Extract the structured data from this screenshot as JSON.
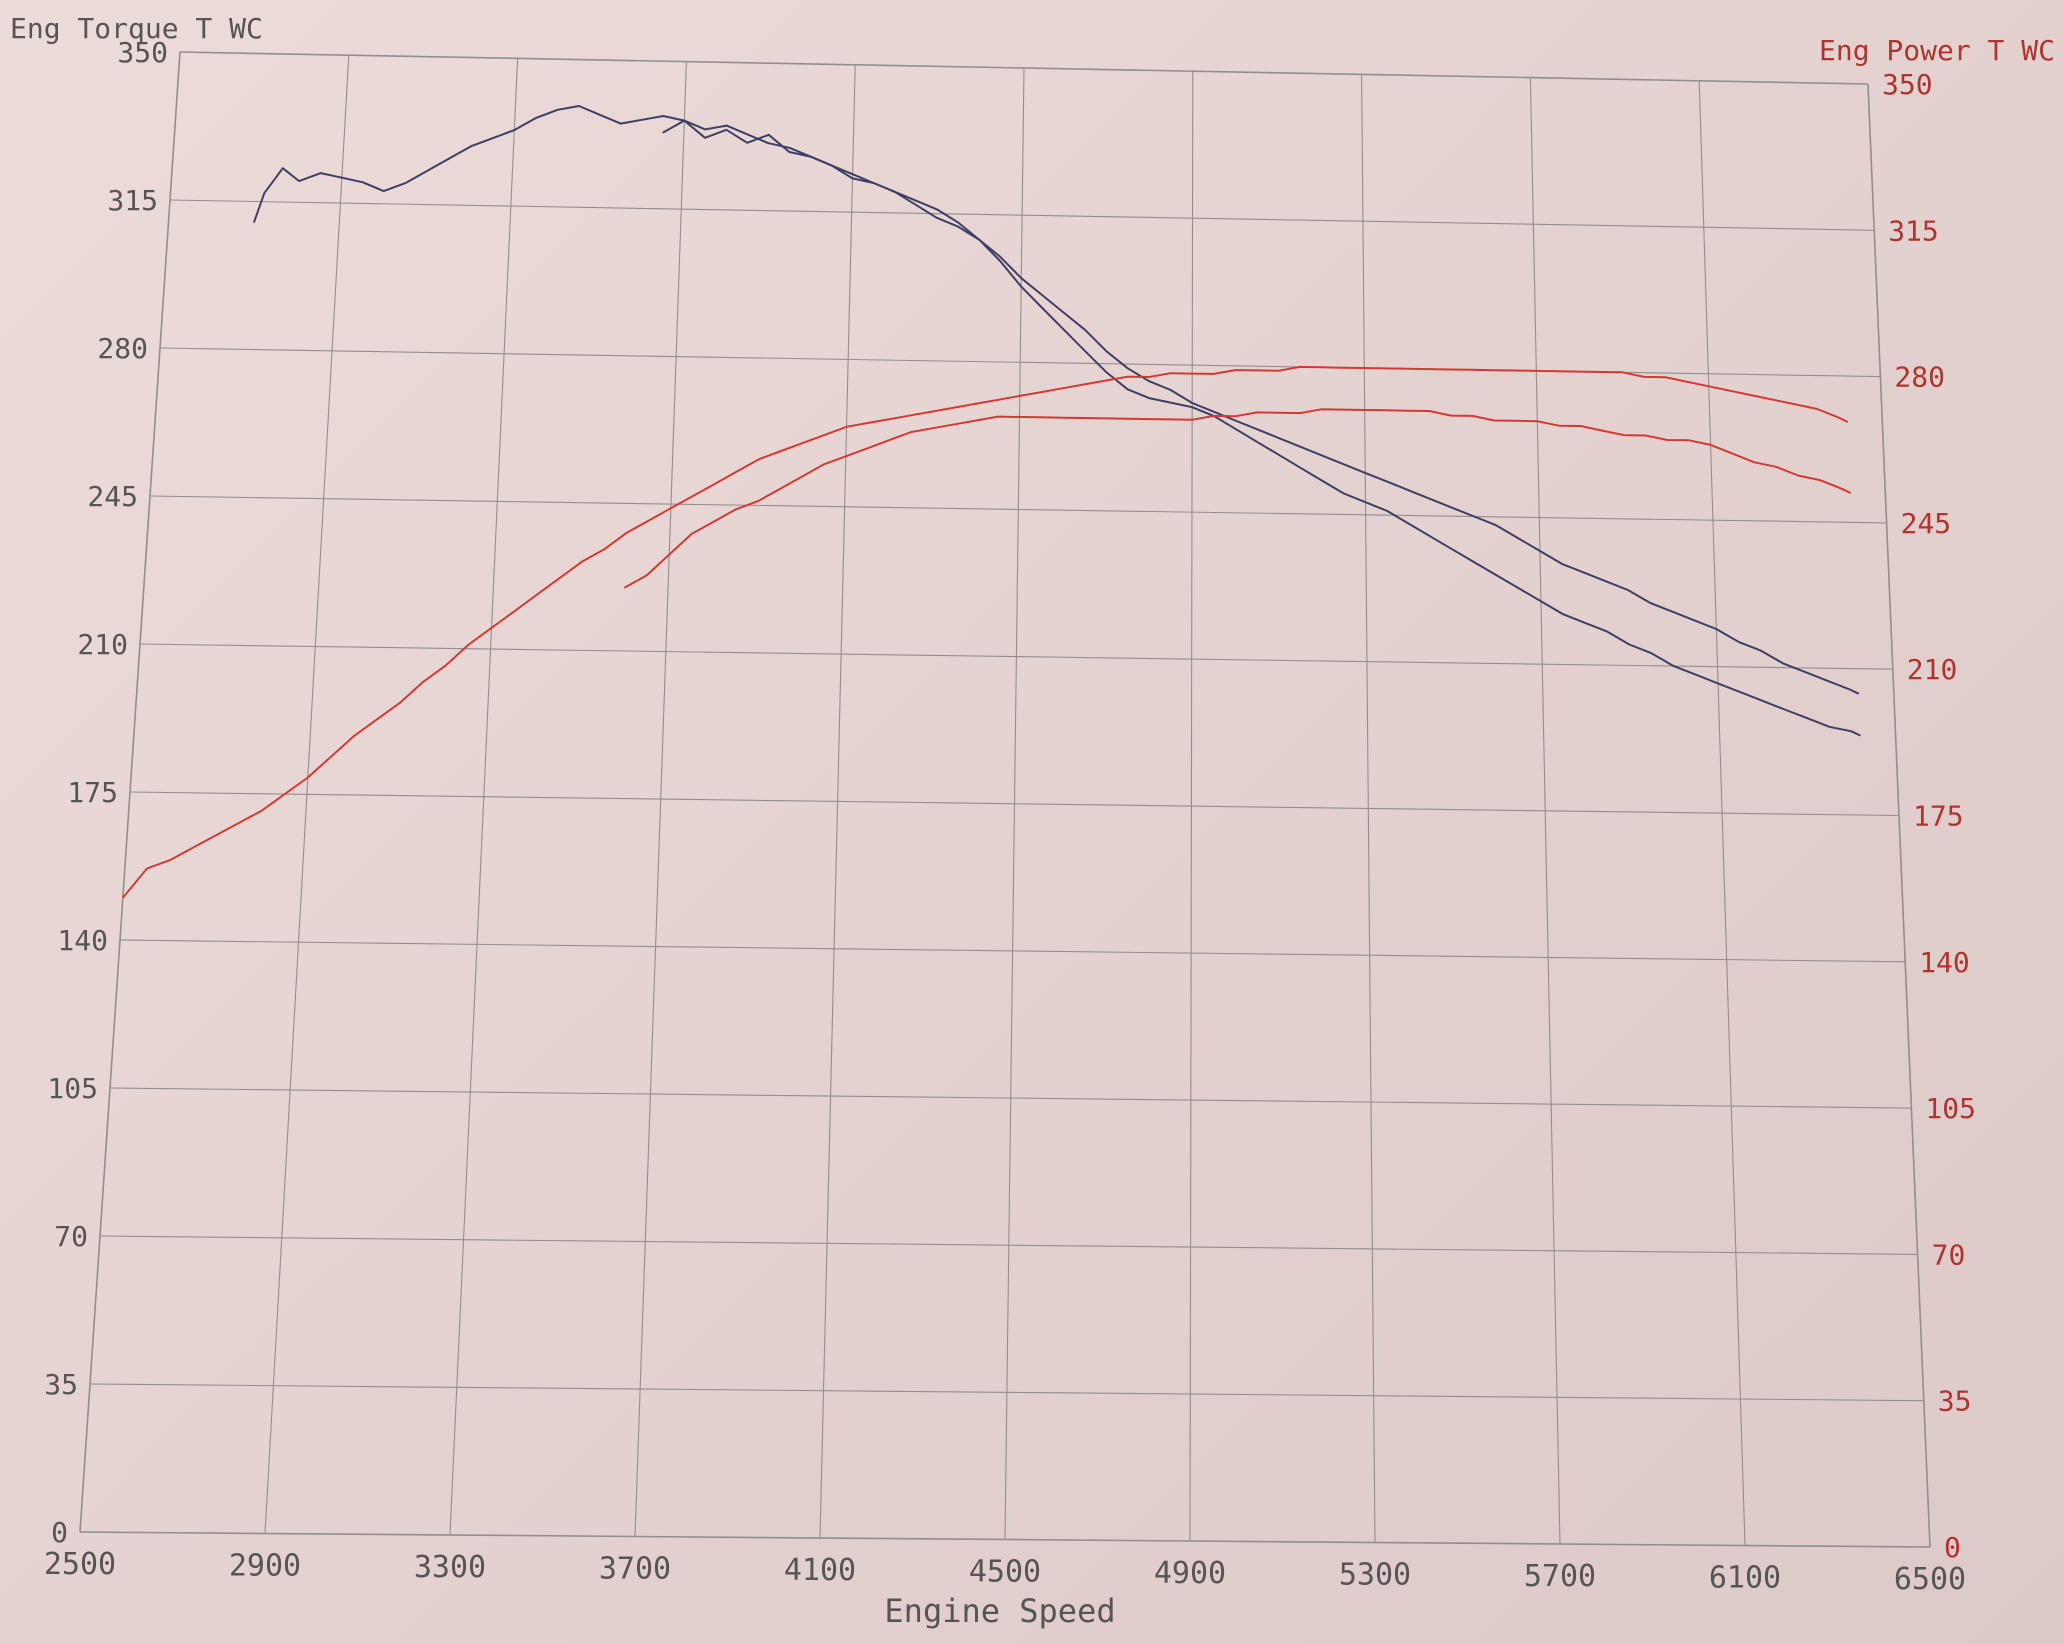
{
  "chart_data": {
    "type": "line",
    "title": "",
    "xlabel": "Engine Speed",
    "ylabel_left": "Eng Torque T WC",
    "ylabel_right": "Eng Power T WC",
    "xlim": [
      2500,
      6500
    ],
    "ylim_left": [
      0,
      350
    ],
    "ylim_right": [
      0,
      350
    ],
    "x_ticks": [
      "2500",
      "2900",
      "3300",
      "3700",
      "4100",
      "4500",
      "4900",
      "5300",
      "5700",
      "6100",
      "6500"
    ],
    "y_ticks_left": [
      "0",
      "35",
      "70",
      "105",
      "140",
      "175",
      "210",
      "245",
      "280",
      "315",
      "350"
    ],
    "y_ticks_right": [
      "0",
      "35",
      "70",
      "105",
      "140",
      "175",
      "210",
      "245",
      "280",
      "315",
      "350"
    ],
    "grid": true,
    "colors": {
      "torque": "#3f3f66",
      "power": "#d23a33",
      "grid": "#8f8f8f",
      "right_axis_text": "#b0342e"
    },
    "series": [
      {
        "axis": "left",
        "color": "torque",
        "x": [
          2700,
          2720,
          2760,
          2800,
          2850,
          2900,
          2950,
          3000,
          3050,
          3100,
          3150,
          3200,
          3250,
          3300,
          3350,
          3400,
          3450,
          3500,
          3550,
          3600,
          3650,
          3700,
          3750,
          3800,
          3850,
          3900,
          3950,
          4000,
          4050,
          4100,
          4150,
          4200,
          4250,
          4300,
          4350,
          4400,
          4450,
          4500,
          4550,
          4600,
          4650,
          4700,
          4750,
          4800,
          4850,
          4900,
          4950,
          5000,
          5050,
          5100,
          5150,
          5200,
          5250,
          5300,
          5350,
          5400,
          5450,
          5500,
          5550,
          5600,
          5650,
          5700,
          5750,
          5800,
          5850,
          5900,
          5950,
          6000,
          6050,
          6100,
          6150,
          6200,
          6250,
          6300,
          6350,
          6400,
          6420
        ],
        "y": [
          310,
          317,
          323,
          320,
          322,
          321,
          320,
          318,
          320,
          323,
          326,
          329,
          331,
          333,
          336,
          338,
          339,
          337,
          335,
          336,
          337,
          336,
          334,
          335,
          333,
          331,
          330,
          328,
          326,
          324,
          322,
          320,
          317,
          314,
          312,
          309,
          305,
          300,
          296,
          292,
          288,
          283,
          279,
          276,
          274,
          271,
          269,
          267,
          265,
          263,
          261,
          259,
          257,
          255,
          253,
          251,
          249,
          247,
          245,
          243,
          240,
          237,
          234,
          232,
          230,
          228,
          225,
          223,
          221,
          219,
          216,
          214,
          211,
          209,
          207,
          205,
          204
        ]
      },
      {
        "axis": "left",
        "color": "torque",
        "x": [
          3650,
          3700,
          3750,
          3800,
          3850,
          3900,
          3950,
          4000,
          4050,
          4100,
          4150,
          4200,
          4250,
          4300,
          4350,
          4400,
          4450,
          4500,
          4550,
          4600,
          4650,
          4700,
          4750,
          4800,
          4850,
          4900,
          4950,
          5000,
          5050,
          5100,
          5150,
          5200,
          5250,
          5300,
          5350,
          5400,
          5450,
          5500,
          5550,
          5600,
          5650,
          5700,
          5750,
          5800,
          5850,
          5900,
          5950,
          6000,
          6050,
          6100,
          6150,
          6200,
          6250,
          6300,
          6350,
          6400,
          6420
        ],
        "y": [
          333,
          336,
          332,
          334,
          331,
          333,
          329,
          328,
          326,
          323,
          322,
          320,
          318,
          316,
          313,
          309,
          304,
          298,
          293,
          288,
          283,
          278,
          274,
          272,
          271,
          270,
          268,
          265,
          262,
          259,
          256,
          253,
          250,
          248,
          246,
          243,
          240,
          237,
          234,
          231,
          228,
          225,
          222,
          220,
          218,
          215,
          213,
          210,
          208,
          206,
          204,
          202,
          200,
          198,
          196,
          195,
          194
        ]
      },
      {
        "axis": "right",
        "color": "power",
        "x": [
          2500,
          2550,
          2600,
          2650,
          2700,
          2750,
          2800,
          2850,
          2900,
          2950,
          3000,
          3050,
          3100,
          3150,
          3200,
          3250,
          3300,
          3350,
          3400,
          3450,
          3500,
          3550,
          3600,
          3650,
          3700,
          3750,
          3800,
          3850,
          3900,
          3950,
          4000,
          4050,
          4100,
          4150,
          4200,
          4250,
          4300,
          4350,
          4400,
          4450,
          4500,
          4550,
          4600,
          4650,
          4700,
          4750,
          4800,
          4850,
          4900,
          4950,
          5000,
          5050,
          5100,
          5150,
          5200,
          5250,
          5300,
          5350,
          5400,
          5450,
          5500,
          5550,
          5600,
          5650,
          5700,
          5750,
          5800,
          5850,
          5900,
          5950,
          6000,
          6050,
          6100,
          6150,
          6200,
          6250,
          6300,
          6350,
          6400,
          6420
        ],
        "y": [
          150,
          157,
          159,
          162,
          165,
          168,
          171,
          175,
          179,
          184,
          189,
          193,
          197,
          202,
          206,
          211,
          215,
          219,
          223,
          227,
          231,
          234,
          238,
          241,
          244,
          247,
          250,
          253,
          256,
          258,
          260,
          262,
          264,
          265,
          266,
          267,
          268,
          269,
          270,
          271,
          272,
          273,
          274,
          275,
          276,
          277,
          277,
          278,
          278,
          278,
          279,
          279,
          279,
          280,
          280,
          280,
          280,
          280,
          280,
          280,
          280,
          280,
          280,
          280,
          280,
          280,
          280,
          280,
          280,
          279,
          279,
          278,
          277,
          276,
          275,
          274,
          273,
          272,
          270,
          269
        ]
      },
      {
        "axis": "right",
        "color": "power",
        "x": [
          3600,
          3650,
          3700,
          3750,
          3800,
          3850,
          3900,
          3950,
          4000,
          4050,
          4100,
          4150,
          4200,
          4250,
          4300,
          4350,
          4400,
          4450,
          4500,
          4550,
          4600,
          4650,
          4700,
          4750,
          4800,
          4850,
          4900,
          4950,
          5000,
          5050,
          5100,
          5150,
          5200,
          5250,
          5300,
          5350,
          5400,
          5450,
          5500,
          5550,
          5600,
          5650,
          5700,
          5750,
          5800,
          5850,
          5900,
          5950,
          6000,
          6050,
          6100,
          6150,
          6200,
          6250,
          6300,
          6350,
          6400,
          6420
        ],
        "y": [
          225,
          228,
          233,
          238,
          241,
          244,
          246,
          249,
          252,
          255,
          257,
          259,
          261,
          263,
          264,
          265,
          266,
          267,
          267,
          267,
          267,
          267,
          267,
          267,
          267,
          267,
          267,
          268,
          268,
          269,
          269,
          269,
          270,
          270,
          270,
          270,
          270,
          270,
          269,
          269,
          268,
          268,
          268,
          267,
          267,
          266,
          265,
          265,
          264,
          264,
          263,
          261,
          259,
          258,
          256,
          255,
          253,
          252
        ]
      }
    ]
  }
}
